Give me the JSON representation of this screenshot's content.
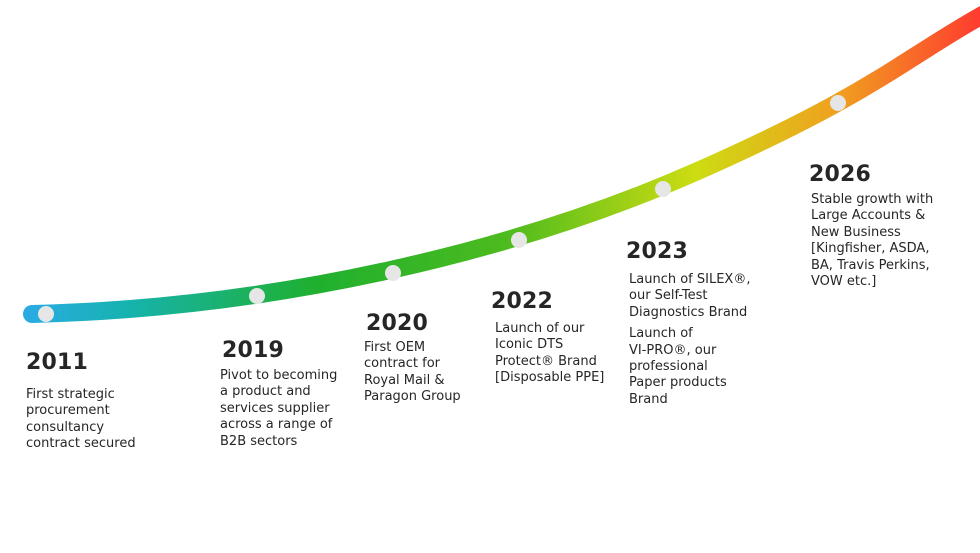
{
  "colors": {
    "gradient_start": "#29abe2",
    "gradient_mid_green": "#1fb02f",
    "gradient_mid_yellow": "#cddc12",
    "gradient_end": "#ff3b2f",
    "marker": "#e6e6e6",
    "text": "#262626"
  },
  "milestones": [
    {
      "year": "2011",
      "description": "First strategic\nprocurement\nconsultancy\ncontract secured"
    },
    {
      "year": "2019",
      "description": "Pivot to becoming\na product and\nservices supplier\nacross a range of\nB2B sectors"
    },
    {
      "year": "2020",
      "description": "First OEM\ncontract for\nRoyal Mail &\nParagon Group"
    },
    {
      "year": "2022",
      "description": "Launch of our\nIconic DTS\nProtect® Brand\n[Disposable PPE]"
    },
    {
      "year": "2023",
      "description": "Launch of SILEX®,\nour Self-Test\nDiagnostics Brand",
      "description2": "Launch of\nVI-PRO®, our\nprofessional\nPaper products\nBrand"
    },
    {
      "year": "2026",
      "description": "Stable growth with\nLarge Accounts &\nNew Business\n[Kingfisher, ASDA,\nBA, Travis Perkins,\nVOW etc.]"
    }
  ]
}
